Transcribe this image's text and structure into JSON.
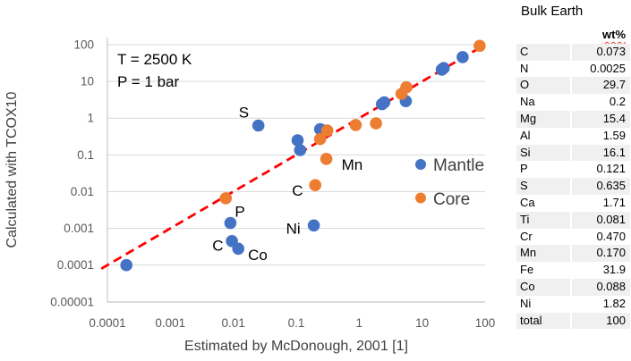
{
  "chart_data": {
    "type": "scatter",
    "title": "",
    "xlabel": "Estimated by McDonough, 2001 [1]",
    "ylabel": "Calculated with TCOX10",
    "x_scale": "log",
    "y_scale": "log",
    "xlim": [
      0.0001,
      100
    ],
    "ylim": [
      1e-05,
      100
    ],
    "grid": "horizontal",
    "x_ticks": [
      "0.0001",
      "0.001",
      "0.01",
      "0.1",
      "1",
      "10",
      "100"
    ],
    "y_ticks": [
      "100",
      "10",
      "1",
      "0.1",
      "0.01",
      "0.001",
      "0.0001",
      "0.00001"
    ],
    "annotations": [
      {
        "text": "T = 2500 K"
      },
      {
        "text": "P = 1 bar"
      }
    ],
    "legend_position": "middle-right",
    "series": [
      {
        "name": "Mantle",
        "color": "#4472C4",
        "points": [
          {
            "x": 0.0002,
            "y": 0.0001
          },
          {
            "x": 0.0095,
            "y": 0.00045,
            "label": "Co",
            "dx": 18,
            "dy": 21
          },
          {
            "x": 0.012,
            "y": 0.00028,
            "label": "C",
            "dx": -29,
            "dy": 2
          },
          {
            "x": 0.009,
            "y": 0.0014,
            "label": "P",
            "dx": 5,
            "dy": -7
          },
          {
            "x": 0.025,
            "y": 0.63,
            "label": "S",
            "dx": -22,
            "dy": -9
          },
          {
            "x": 0.105,
            "y": 0.25
          },
          {
            "x": 0.115,
            "y": 0.135
          },
          {
            "x": 0.19,
            "y": 0.0012,
            "label": "Ni",
            "dx": -31,
            "dy": 9
          },
          {
            "x": 0.24,
            "y": 0.5
          },
          {
            "x": 0.27,
            "y": 0.46
          },
          {
            "x": 2.3,
            "y": 2.4
          },
          {
            "x": 2.5,
            "y": 2.7
          },
          {
            "x": 5.5,
            "y": 2.9
          },
          {
            "x": 20.5,
            "y": 21
          },
          {
            "x": 22,
            "y": 23
          },
          {
            "x": 44,
            "y": 46
          }
        ]
      },
      {
        "name": "Core",
        "color": "#ED7D31",
        "points": [
          {
            "x": 0.0076,
            "y": 0.0066
          },
          {
            "x": 0.2,
            "y": 0.015,
            "label": "C",
            "dx": -26,
            "dy": 12
          },
          {
            "x": 0.3,
            "y": 0.078,
            "label": "Mn",
            "dx": 17,
            "dy": 12
          },
          {
            "x": 0.24,
            "y": 0.27
          },
          {
            "x": 0.31,
            "y": 0.46
          },
          {
            "x": 0.88,
            "y": 0.65
          },
          {
            "x": 1.85,
            "y": 0.72
          },
          {
            "x": 4.7,
            "y": 4.6
          },
          {
            "x": 5.6,
            "y": 6.9
          },
          {
            "x": 82,
            "y": 93
          }
        ]
      }
    ],
    "identity_line": {
      "color": "#FF0000",
      "style": "dashed",
      "from": {
        "x": 8e-05,
        "y": 8e-05
      },
      "to": {
        "x": 75,
        "y": 75
      }
    }
  },
  "colors": {
    "mantle": "#4472C4",
    "core": "#ED7D31",
    "line": "#FF0000",
    "gridline": "#D9D9D9",
    "axis": "#BFBFBF",
    "tick_text": "#595959",
    "axis_title_text": "#404040",
    "table_band": "#F0F0F0"
  },
  "table": {
    "title": "Bulk Earth",
    "value_header": "wt%",
    "rows": [
      [
        "C",
        "0.073"
      ],
      [
        "N",
        "0.0025"
      ],
      [
        "O",
        "29.7"
      ],
      [
        "Na",
        "0.2"
      ],
      [
        "Mg",
        "15.4"
      ],
      [
        "Al",
        "1.59"
      ],
      [
        "Si",
        "16.1"
      ],
      [
        "P",
        "0.121"
      ],
      [
        "S",
        "0.635"
      ],
      [
        "Ca",
        "1.71"
      ],
      [
        "Ti",
        "0.081"
      ],
      [
        "Cr",
        "0.470"
      ],
      [
        "Mn",
        "0.170"
      ],
      [
        "Fe",
        "31.9"
      ],
      [
        "Co",
        "0.088"
      ],
      [
        "Ni",
        "1.82"
      ],
      [
        "total",
        "100"
      ]
    ]
  }
}
